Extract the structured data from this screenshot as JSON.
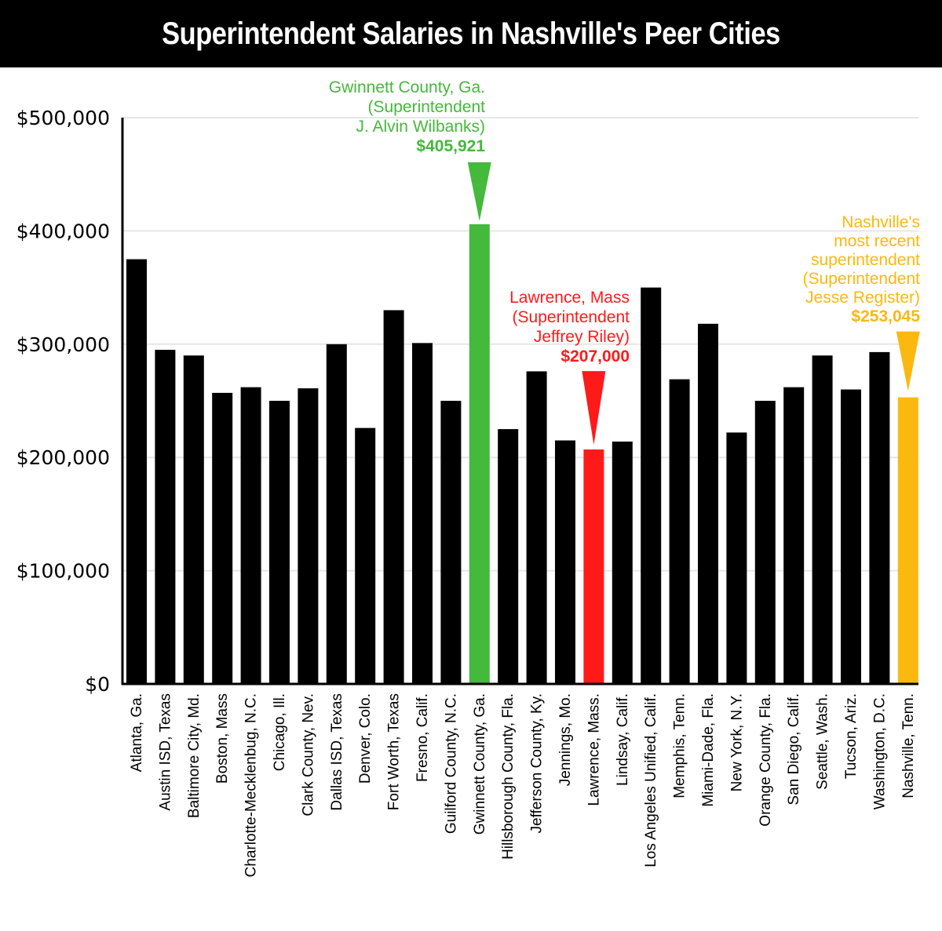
{
  "title": "Superintendent Salaries in Nashville's Peer Cities",
  "colors": {
    "default": "#000000",
    "green": "#44b93b",
    "red": "#ff1a1a",
    "gold": "#fbb80f",
    "grid": "#e6e6e6"
  },
  "chart_data": {
    "type": "bar",
    "title": "Superintendent Salaries in Nashville's Peer Cities",
    "xlabel": "",
    "ylabel": "",
    "ylim": [
      0,
      500000
    ],
    "yticks": [
      0,
      100000,
      200000,
      300000,
      400000,
      500000
    ],
    "ytick_labels": [
      "$0",
      "$100,000",
      "$200,000",
      "$300,000",
      "$400,000",
      "$500,000"
    ],
    "grid": true,
    "categories": [
      "Atlanta, Ga.",
      "Austin ISD, Texas",
      "Baltimore City, Md.",
      "Boston, Mass",
      "Charlotte-Mecklenbug, N.C.",
      "Chicago, Ill.",
      "Clark County, Nev.",
      "Dallas ISD, Texas",
      "Denver, Colo.",
      "Fort Worth, Texas",
      "Fresno, Calif.",
      "Guilford County, N.C.",
      "Gwinnett County, Ga.",
      "Hillsborough County, Fla.",
      "Jefferson County, Ky.",
      "Jennings, Mo.",
      "Lawrence, Mass.",
      "Lindsay, Calif.",
      "Los Angeles Unified, Calif.",
      "Memphis, Tenn.",
      "Miami-Dade, Fla.",
      "New York, N.Y.",
      "Orange County, Fla.",
      "San Diego, Calif.",
      "Seattle, Wash.",
      "Tucson, Ariz.",
      "Washington, D.C.",
      "Nashville, Tenn."
    ],
    "values": [
      375000,
      295000,
      290000,
      257000,
      262000,
      250000,
      261000,
      300000,
      226000,
      330000,
      301000,
      250000,
      405921,
      225000,
      276000,
      215000,
      207000,
      214000,
      350000,
      269000,
      318000,
      222000,
      250000,
      262000,
      290000,
      260000,
      293000,
      253045
    ],
    "highlights": [
      {
        "category": "Gwinnett County, Ga.",
        "color": "#44b93b",
        "lines": [
          "Gwinnett County, Ga.",
          "(Superintendent",
          "J. Alvin Wilbanks)"
        ],
        "value_label": "$405,921"
      },
      {
        "category": "Lawrence, Mass.",
        "color": "#ff1a1a",
        "lines": [
          "Lawrence, Mass",
          "(Superintendent",
          "Jeffrey Riley)"
        ],
        "value_label": "$207,000"
      },
      {
        "category": "Nashville, Tenn.",
        "color": "#fbb80f",
        "lines": [
          "Nashville's",
          "most recent",
          "superintendent",
          "(Superintendent",
          "Jesse Register)"
        ],
        "value_label": "$253,045"
      }
    ]
  }
}
